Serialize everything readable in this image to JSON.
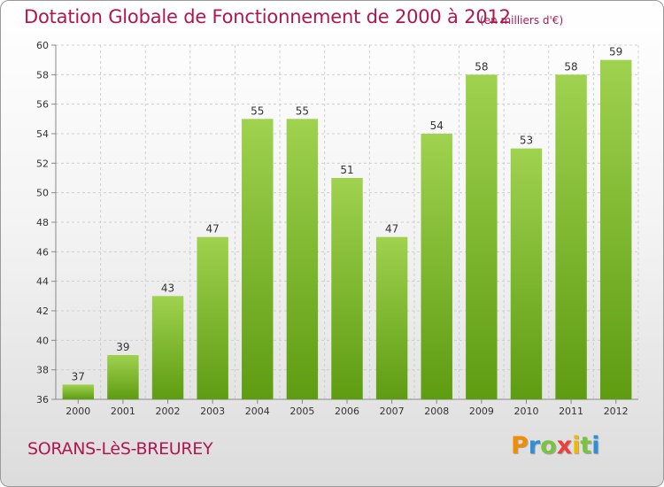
{
  "title": "Dotation Globale de Fonctionnement de 2000 à 2012",
  "subtitle": "(en milliers d'€)",
  "town": "SORANS-LèS-BREUREY",
  "logo": {
    "letters": [
      "P",
      "r",
      "o",
      "x",
      "i",
      "t",
      "i"
    ],
    "colors": [
      "#f28c00",
      "#2f8fd8",
      "#7cc242",
      "#e8413d",
      "#f2b800",
      "#7cc242",
      "#2f8fd8"
    ]
  },
  "colors": {
    "title": "#b0174f",
    "bar_top": "#9fd24f",
    "bar_bottom": "#5e9c12",
    "grid": "#cfcfcf"
  },
  "chart_data": {
    "type": "bar",
    "title": "Dotation Globale de Fonctionnement de 2000 à 2012",
    "subtitle": "(en milliers d'€)",
    "categories": [
      "2000",
      "2001",
      "2002",
      "2003",
      "2004",
      "2005",
      "2006",
      "2007",
      "2008",
      "2009",
      "2010",
      "2011",
      "2012"
    ],
    "values": [
      37,
      39,
      43,
      47,
      55,
      55,
      51,
      47,
      54,
      58,
      53,
      58,
      59
    ],
    "ylim": [
      36,
      60
    ],
    "yticks": [
      36,
      38,
      40,
      42,
      44,
      46,
      48,
      50,
      52,
      54,
      56,
      58,
      60
    ],
    "grid": true,
    "grid_style": "dashed"
  }
}
